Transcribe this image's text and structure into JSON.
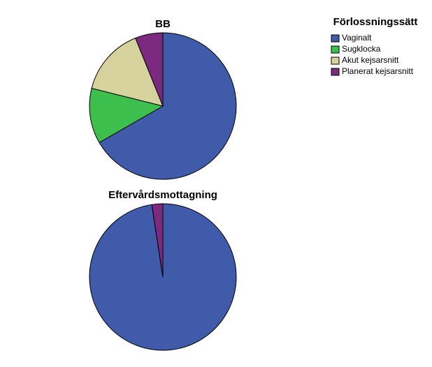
{
  "legend": {
    "title": "Förlossningssätt",
    "categories": [
      "Vaginalt",
      "Sugklocka",
      "Akut kejsarsnitt",
      "Planerat kejsarsnitt"
    ],
    "colors": [
      "#3f5ba9",
      "#3dbf4e",
      "#d6d29e",
      "#7b2a7f"
    ]
  },
  "chart_data": [
    {
      "type": "pie",
      "title": "BB",
      "values": [
        66.7,
        12.2,
        15.0,
        6.1
      ]
    },
    {
      "type": "pie",
      "title": "Eftervårdsmottagning",
      "values": [
        97.6,
        0,
        0,
        2.4
      ]
    }
  ]
}
